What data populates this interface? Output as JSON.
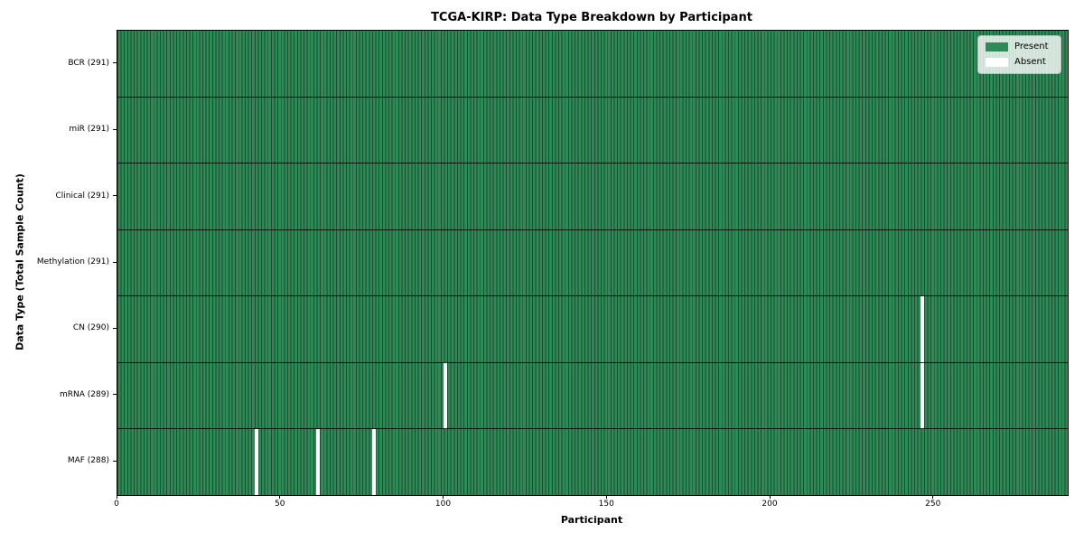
{
  "chart_data": {
    "type": "heatmap",
    "title": "TCGA-KIRP: Data Type Breakdown by Participant",
    "xlabel": "Participant",
    "ylabel": "Data Type (Total Sample Count)",
    "x_ticks": [
      0,
      50,
      100,
      150,
      200,
      250
    ],
    "x_range": [
      0,
      291
    ],
    "n_participants": 291,
    "grid": false,
    "legend_position": "upper right",
    "legend": [
      {
        "label": "Present",
        "color": "#2e8b57"
      },
      {
        "label": "Absent",
        "color": "#ffffff"
      }
    ],
    "rows": [
      {
        "label": "BCR (291)",
        "data_type": "BCR",
        "total_samples": 291,
        "absent_participants": []
      },
      {
        "label": "miR (291)",
        "data_type": "miR",
        "total_samples": 291,
        "absent_participants": []
      },
      {
        "label": "Clinical (291)",
        "data_type": "Clinical",
        "total_samples": 291,
        "absent_participants": []
      },
      {
        "label": "Methylation (291)",
        "data_type": "Methylation",
        "total_samples": 291,
        "absent_participants": []
      },
      {
        "label": "CN (290)",
        "data_type": "CN",
        "total_samples": 290,
        "absent_participants": [
          246
        ]
      },
      {
        "label": "mRNA (289)",
        "data_type": "mRNA",
        "total_samples": 289,
        "absent_participants": [
          100,
          246
        ]
      },
      {
        "label": "MAF (288)",
        "data_type": "MAF",
        "total_samples": 288,
        "absent_participants": [
          42,
          61,
          78
        ]
      }
    ],
    "colors": {
      "present": "#2e8b57",
      "cell_edge": "#1d4a31",
      "absent": "#ffffff",
      "row_boundary": "#000000"
    }
  }
}
